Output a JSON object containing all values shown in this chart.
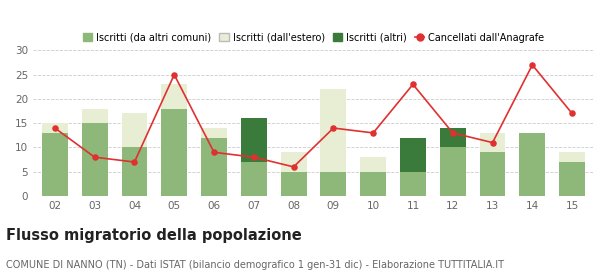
{
  "years": [
    "02",
    "03",
    "04",
    "05",
    "06",
    "07",
    "08",
    "09",
    "10",
    "11",
    "12",
    "13",
    "14",
    "15"
  ],
  "iscritti_altri_comuni": [
    13,
    15,
    10,
    18,
    12,
    7,
    5,
    5,
    5,
    5,
    10,
    9,
    13,
    7
  ],
  "iscritti_estero": [
    2,
    3,
    7,
    5,
    2,
    0,
    4,
    17,
    3,
    0,
    0,
    4,
    0,
    2
  ],
  "iscritti_altri": [
    0,
    0,
    0,
    0,
    0,
    9,
    0,
    0,
    0,
    7,
    4,
    0,
    0,
    0
  ],
  "cancellati": [
    14,
    8,
    7,
    25,
    9,
    8,
    6,
    14,
    13,
    23,
    13,
    11,
    27,
    17
  ],
  "color_altri_comuni": "#8db87a",
  "color_estero": "#e8eed4",
  "color_altri": "#3a7a3a",
  "color_cancellati": "#e03030",
  "legend_labels": [
    "Iscritti (da altri comuni)",
    "Iscritti (dall'estero)",
    "Iscritti (altri)",
    "Cancellati dall'Anagrafe"
  ],
  "title": "Flusso migratorio della popolazione",
  "subtitle": "COMUNE DI NANNO (TN) - Dati ISTAT (bilancio demografico 1 gen-31 dic) - Elaborazione TUTTITALIA.IT",
  "ylim": [
    0,
    30
  ],
  "yticks": [
    0,
    5,
    10,
    15,
    20,
    25,
    30
  ],
  "background_color": "#ffffff",
  "grid_color": "#cccccc",
  "tick_fontsize": 7.5,
  "legend_fontsize": 7,
  "title_fontsize": 10.5,
  "subtitle_fontsize": 7
}
